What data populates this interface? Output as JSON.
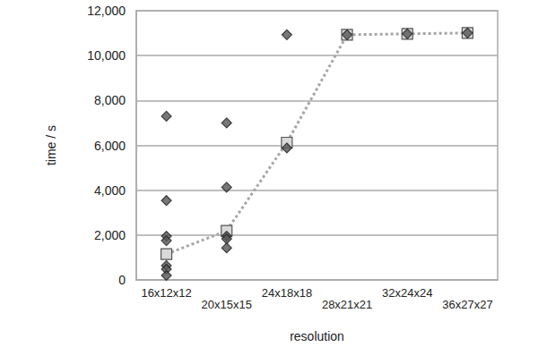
{
  "chart_data": {
    "type": "scatter",
    "x_label": "resolution",
    "y_label": "time / s",
    "categories": [
      "16x12x12",
      "20x15x15",
      "24x18x18",
      "28x21x21",
      "32x24x24",
      "36x27x27"
    ],
    "ylim": [
      0,
      12000
    ],
    "yticks": [
      0,
      2000,
      4000,
      6000,
      8000,
      10000,
      12000
    ],
    "grid": true,
    "series": [
      {
        "type": "scatter",
        "marker": "diamond",
        "color": "#555555",
        "x": [
          "16x12x12",
          "16x12x12",
          "16x12x12",
          "16x12x12",
          "16x12x12",
          "16x12x12",
          "16x12x12",
          "20x15x15",
          "20x15x15",
          "20x15x15",
          "20x15x15",
          "20x15x15",
          "24x18x18",
          "24x18x18",
          "28x21x21",
          "32x24x24",
          "36x27x27"
        ],
        "values": [
          7300,
          3540,
          1950,
          1750,
          640,
          480,
          200,
          7000,
          4130,
          1950,
          1830,
          1430,
          10930,
          5880,
          10930,
          10970,
          11010
        ]
      },
      {
        "type": "line",
        "marker": "square",
        "line_style": "dotted",
        "color": "#d9d9d9",
        "values": [
          1150,
          2190,
          6120,
          10930,
          10970,
          11010
        ]
      }
    ]
  }
}
